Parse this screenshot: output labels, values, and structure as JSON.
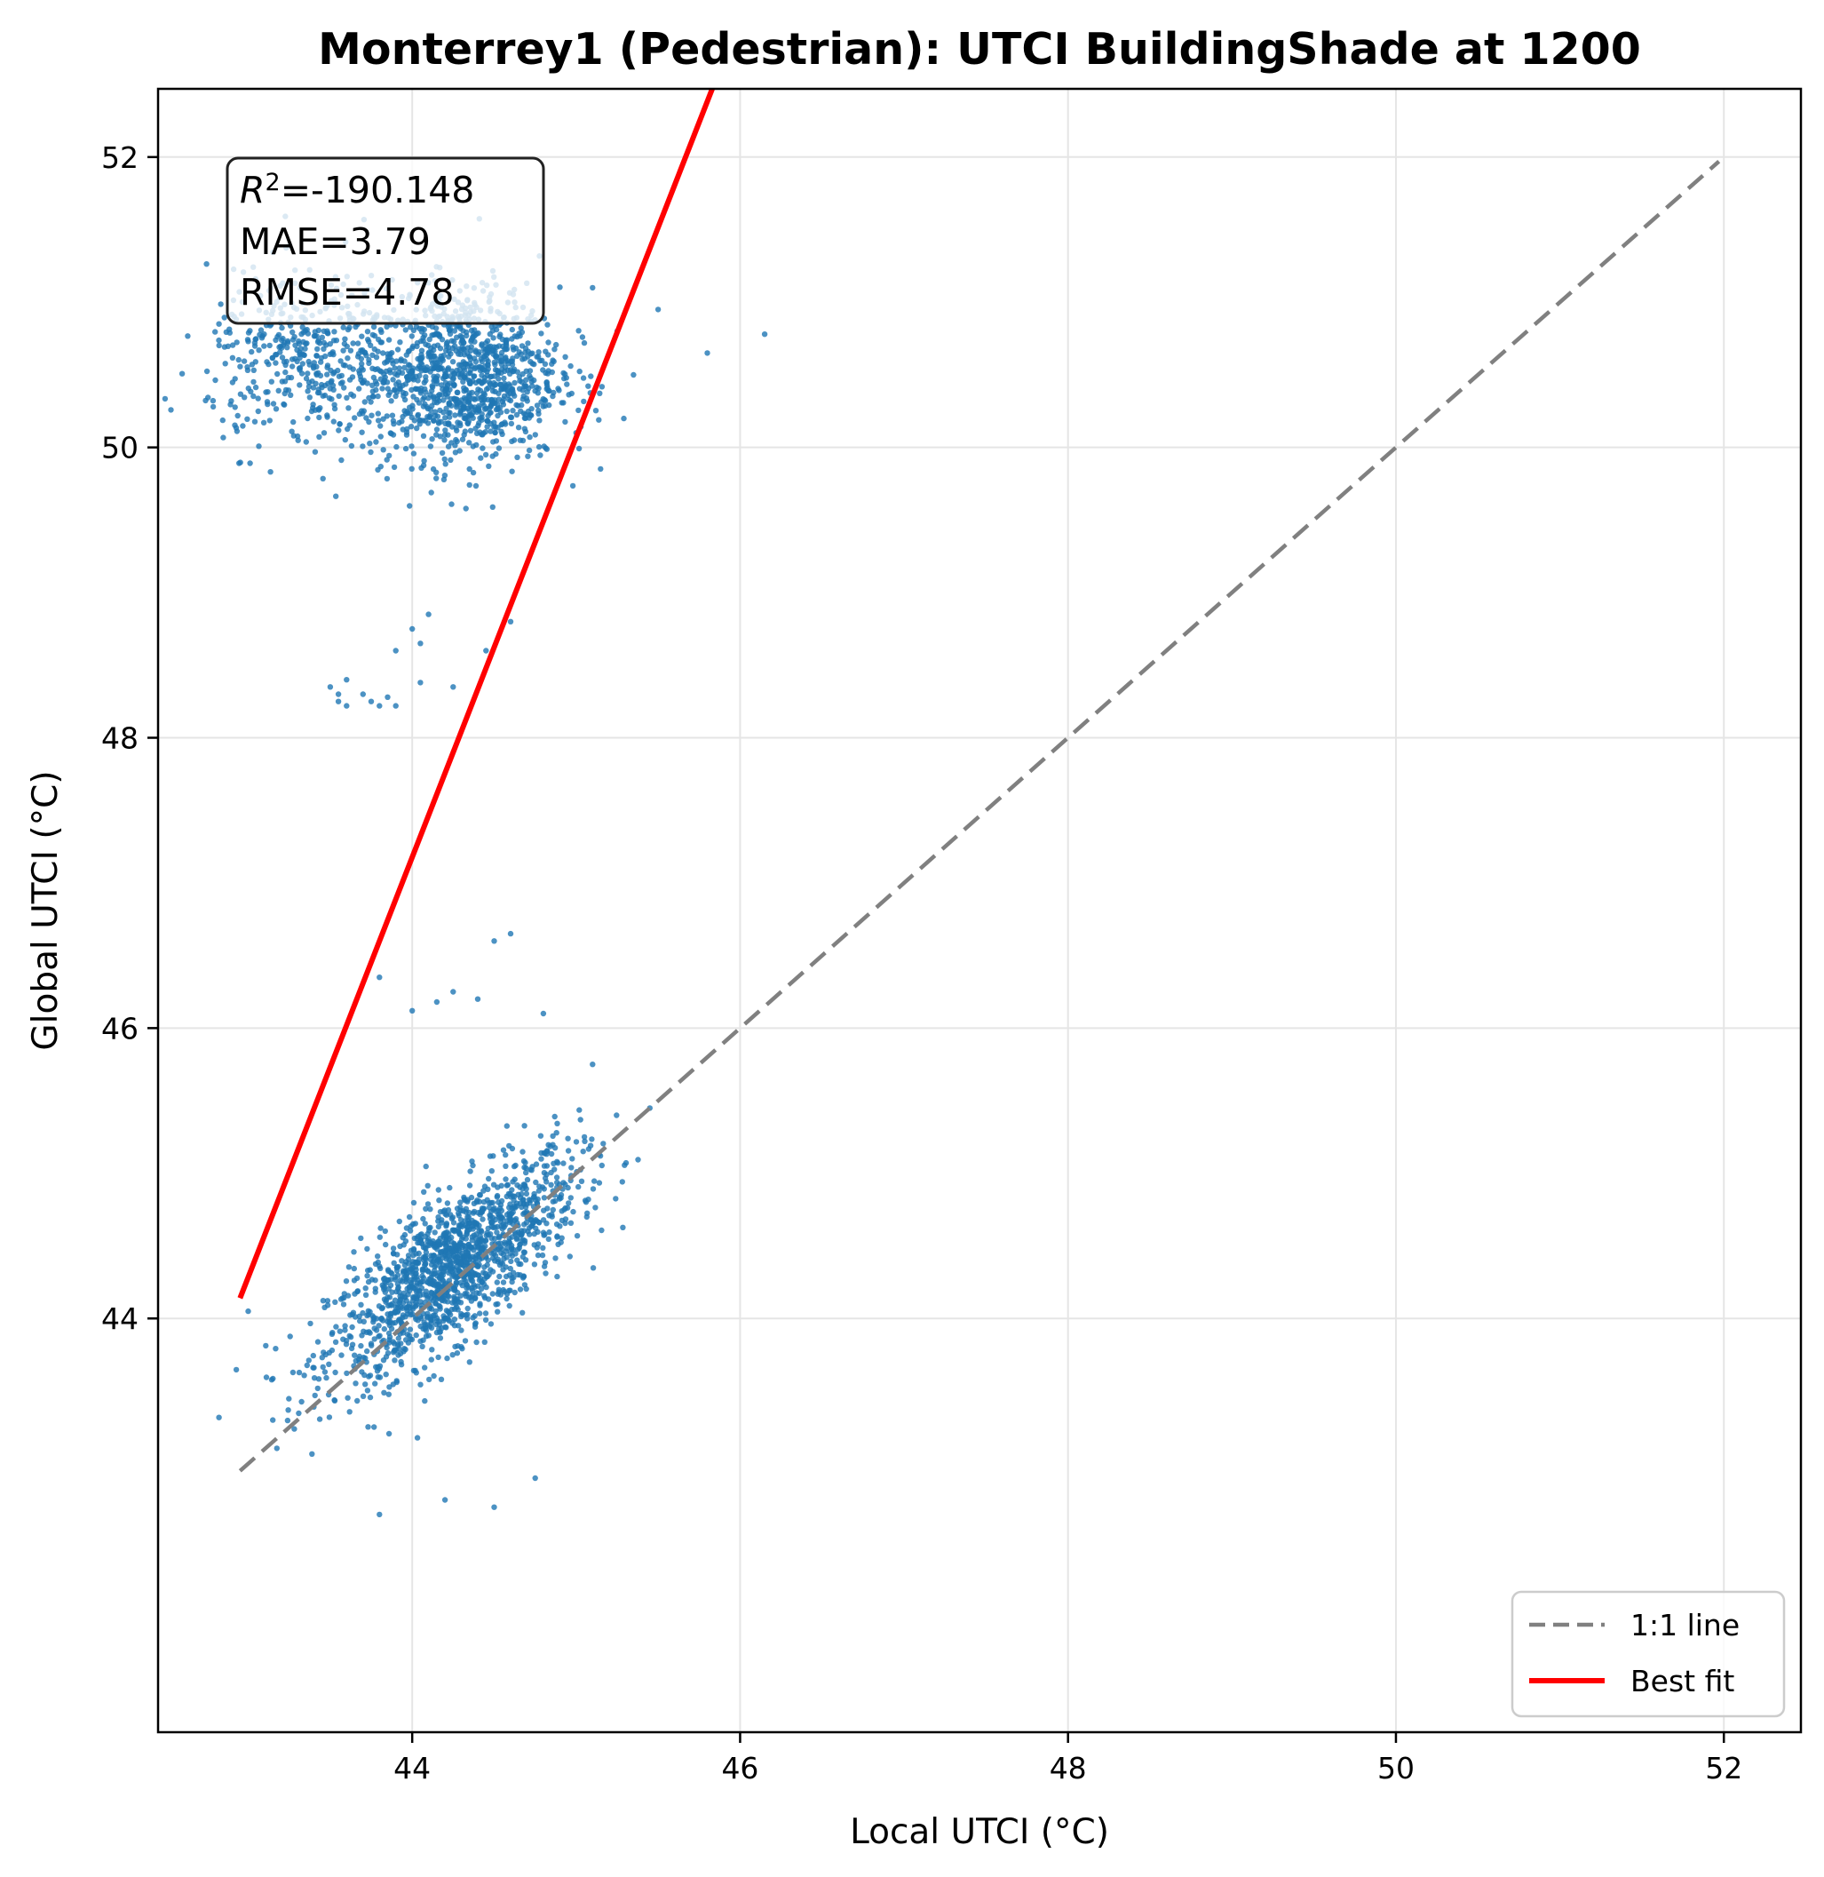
{
  "chart_data": {
    "type": "scatter",
    "title": "Monterrey1 (Pedestrian): UTCI BuildingShade at 1200",
    "xlabel": "Local UTCI (°C)",
    "ylabel": "Global UTCI (°C)",
    "xlim": [
      42.45,
      52.47
    ],
    "ylim": [
      41.15,
      52.47
    ],
    "xticks": [
      44,
      46,
      48,
      50,
      52
    ],
    "yticks": [
      44,
      46,
      48,
      50,
      52
    ],
    "tick_labels": {
      "x": [
        "44",
        "46",
        "48",
        "50",
        "52"
      ],
      "y": [
        "44",
        "46",
        "48",
        "50",
        "52"
      ]
    },
    "grid": true,
    "legend_position": "lower-right",
    "colors": {
      "points": "#1f77b4",
      "identity_line": "#808080",
      "fit_line": "#ff0000"
    },
    "stats": {
      "r2_symbol": "R",
      "r2_exponent": "2",
      "r2_text": "=-190.148",
      "mae_text": "MAE=3.79",
      "rmse_text": "RMSE=4.78"
    },
    "series": [
      {
        "name": "1:1 line",
        "kind": "identity-line",
        "style": "dashed",
        "points": [
          [
            42.95,
            42.95
          ],
          [
            51.97,
            51.97
          ]
        ]
      },
      {
        "name": "Best fit",
        "kind": "fit-line",
        "style": "solid",
        "points": [
          [
            42.95,
            44.14
          ],
          [
            45.83,
            52.47
          ]
        ]
      },
      {
        "name": "",
        "kind": "scatter",
        "clusters": [
          {
            "center": [
              44.25,
              44.35
            ],
            "spread": [
              0.38,
              0.38
            ],
            "count": 1500
          },
          {
            "center": [
              44.3,
              50.5
            ],
            "spread": [
              0.3,
              0.3
            ],
            "count": 1100
          },
          {
            "center": [
              43.35,
              50.6
            ],
            "spread": [
              0.3,
              0.3
            ],
            "count": 420
          }
        ],
        "outliers": [
          [
            43.5,
            48.35
          ],
          [
            43.55,
            48.3
          ],
          [
            43.6,
            48.4
          ],
          [
            43.55,
            48.25
          ],
          [
            43.6,
            48.22
          ],
          [
            43.7,
            48.3
          ],
          [
            43.75,
            48.25
          ],
          [
            43.8,
            48.22
          ],
          [
            43.85,
            48.28
          ],
          [
            43.9,
            48.22
          ],
          [
            44.0,
            48.75
          ],
          [
            44.1,
            48.85
          ],
          [
            43.9,
            48.6
          ],
          [
            44.05,
            48.65
          ],
          [
            44.05,
            48.38
          ],
          [
            44.25,
            48.35
          ],
          [
            44.45,
            48.6
          ],
          [
            44.6,
            48.8
          ],
          [
            43.8,
            46.35
          ],
          [
            44.0,
            46.12
          ],
          [
            44.15,
            46.18
          ],
          [
            44.25,
            46.25
          ],
          [
            44.4,
            46.2
          ],
          [
            44.5,
            46.6
          ],
          [
            44.6,
            46.65
          ],
          [
            44.8,
            46.1
          ],
          [
            45.1,
            45.75
          ],
          [
            44.95,
            44.9
          ],
          [
            45.5,
            50.95
          ],
          [
            45.8,
            50.65
          ],
          [
            46.15,
            50.78
          ],
          [
            45.35,
            50.5
          ],
          [
            45.25,
            50.8
          ],
          [
            45.1,
            51.1
          ],
          [
            44.35,
            43.7
          ],
          [
            43.8,
            42.65
          ],
          [
            44.5,
            42.7
          ],
          [
            44.2,
            42.75
          ],
          [
            44.75,
            42.9
          ],
          [
            43.0,
            44.05
          ],
          [
            43.15,
            43.3
          ],
          [
            45.0,
            50.1
          ]
        ]
      }
    ]
  }
}
